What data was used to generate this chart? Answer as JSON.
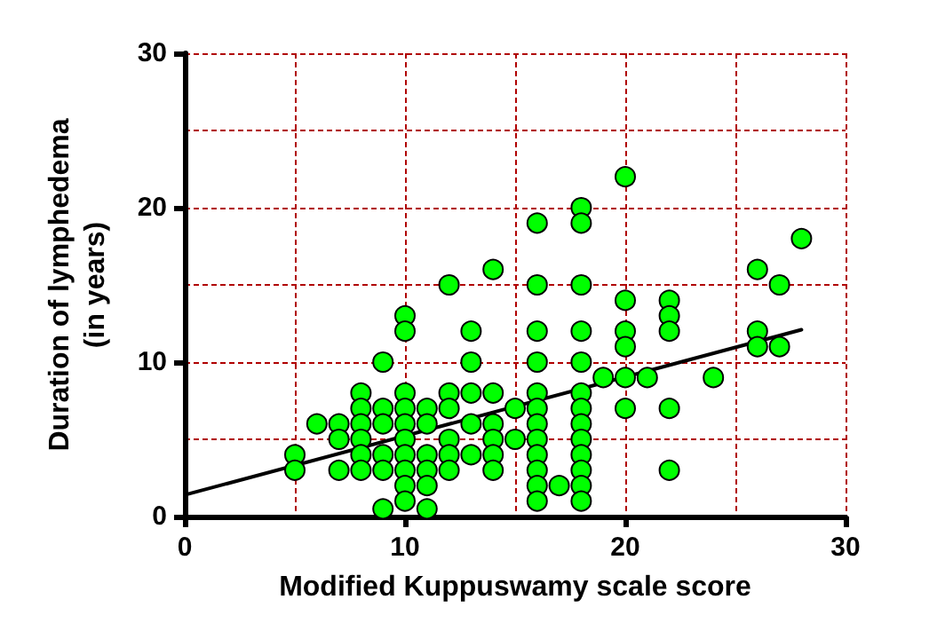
{
  "chart_data": {
    "type": "scatter",
    "xlabel": "Modified Kuppuswamy scale score",
    "ylabel": "Duration of lymphedema\n(in years)",
    "xlim": [
      0,
      30
    ],
    "ylim": [
      0,
      30
    ],
    "xticks": [
      0,
      {
        "value": 5,
        "label": null
      },
      10,
      {
        "value": 15,
        "label": null
      },
      20,
      {
        "value": 25,
        "label": null
      },
      30
    ],
    "yticks": [
      0,
      {
        "value": 5,
        "label": null
      },
      10,
      {
        "value": 15,
        "label": null
      },
      20,
      {
        "value": 25,
        "label": null
      },
      30
    ],
    "grid": true,
    "marker": "circle",
    "series": [
      {
        "color": "#00ff00",
        "x": [
          5,
          5,
          6,
          7,
          7,
          7,
          8,
          8,
          8,
          8,
          8,
          8,
          9,
          9,
          9,
          9,
          9,
          9,
          10,
          10,
          10,
          10,
          10,
          10,
          10,
          10,
          10,
          10,
          11,
          11,
          11,
          11,
          11,
          11,
          12,
          12,
          12,
          12,
          12,
          12,
          13,
          13,
          13,
          13,
          13,
          14,
          14,
          14,
          14,
          14,
          14,
          15,
          15,
          16,
          16,
          16,
          16,
          16,
          16,
          16,
          16,
          16,
          16,
          16,
          16,
          17,
          18,
          18,
          18,
          18,
          18,
          18,
          18,
          18,
          18,
          18,
          18,
          18,
          18,
          19,
          20,
          20,
          20,
          20,
          20,
          20,
          21,
          22,
          22,
          22,
          22,
          22,
          24,
          26,
          26,
          26,
          27,
          27,
          28
        ],
        "values": [
          4,
          3,
          6,
          6,
          5,
          3,
          8,
          7,
          6,
          5,
          4,
          3,
          10,
          7,
          6,
          4,
          3,
          0.5,
          13,
          12,
          8,
          7,
          6,
          5,
          4,
          3,
          2,
          1,
          7,
          6,
          4,
          3,
          2,
          0.5,
          15,
          8,
          7,
          5,
          4,
          3,
          12,
          10,
          8,
          6,
          4,
          16,
          8,
          6,
          5,
          4,
          3,
          7,
          5,
          19,
          15,
          12,
          10,
          8,
          7,
          6,
          5,
          4,
          3,
          2,
          1,
          2,
          20,
          19,
          15,
          12,
          10,
          8,
          7,
          6,
          5,
          4,
          3,
          2,
          1,
          9,
          22,
          14,
          12,
          11,
          9,
          7,
          9,
          14,
          13,
          12,
          7,
          3,
          9,
          16,
          12,
          11,
          15,
          11,
          18
        ]
      },
      {
        "type": "line",
        "color": "#000000",
        "x": [
          0,
          28
        ],
        "values": [
          1.4,
          12.1
        ],
        "marker": "none",
        "line_style": "solid"
      }
    ]
  }
}
